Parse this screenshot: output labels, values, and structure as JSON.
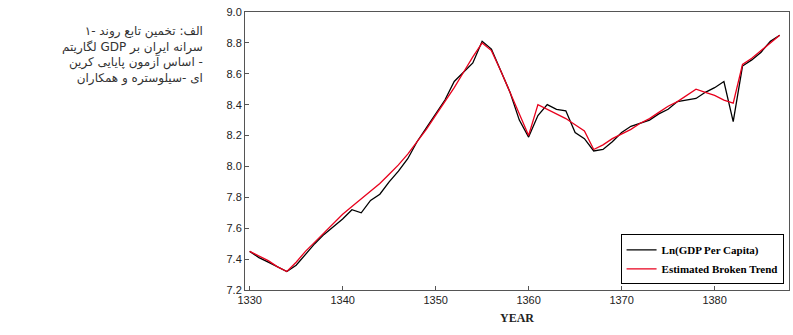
{
  "chart_data": {
    "type": "line",
    "x_label": "YEAR",
    "annotations": [
      {
        "text": "۱- الف: تخمین تابع روند\nلگاریتم GDP سرانه ایران بر\nاساس آزمون پایایی کرین -\nای -سیلوستره و همکاران"
      }
    ],
    "x": [
      1330,
      1331,
      1332,
      1333,
      1334,
      1335,
      1336,
      1337,
      1338,
      1339,
      1340,
      1341,
      1342,
      1343,
      1344,
      1345,
      1346,
      1347,
      1348,
      1349,
      1350,
      1351,
      1352,
      1353,
      1354,
      1355,
      1356,
      1357,
      1358,
      1359,
      1360,
      1361,
      1362,
      1363,
      1364,
      1365,
      1366,
      1367,
      1368,
      1369,
      1370,
      1371,
      1372,
      1373,
      1374,
      1375,
      1376,
      1377,
      1378,
      1379,
      1380,
      1381,
      1382,
      1383,
      1384,
      1385,
      1386,
      1387
    ],
    "series": [
      {
        "name": "Ln(GDP Per Capita)",
        "color": "#000000",
        "line_style": "solid",
        "values": [
          7.45,
          7.41,
          7.38,
          7.35,
          7.32,
          7.36,
          7.43,
          7.5,
          7.56,
          7.61,
          7.66,
          7.72,
          7.7,
          7.78,
          7.82,
          7.9,
          7.97,
          8.05,
          8.16,
          8.25,
          8.34,
          8.43,
          8.55,
          8.61,
          8.67,
          8.81,
          8.76,
          8.62,
          8.48,
          8.3,
          8.19,
          8.33,
          8.4,
          8.37,
          8.36,
          8.22,
          8.18,
          8.1,
          8.11,
          8.16,
          8.22,
          8.26,
          8.28,
          8.3,
          8.34,
          8.37,
          8.42,
          8.43,
          8.44,
          8.48,
          8.51,
          8.55,
          8.29,
          8.65,
          8.69,
          8.74,
          8.81,
          8.85
        ]
      },
      {
        "name": "Estimated Broken Trend",
        "color": "#e8001c",
        "line_style": "solid",
        "values": [
          7.45,
          7.42,
          7.39,
          7.35,
          7.32,
          7.38,
          7.45,
          7.51,
          7.57,
          7.63,
          7.69,
          7.74,
          7.79,
          7.84,
          7.89,
          7.95,
          8.01,
          8.08,
          8.16,
          8.24,
          8.33,
          8.42,
          8.51,
          8.61,
          8.71,
          8.8,
          8.75,
          8.62,
          8.48,
          8.34,
          8.2,
          8.4,
          8.37,
          8.34,
          8.31,
          8.27,
          8.23,
          8.11,
          8.14,
          8.18,
          8.21,
          8.24,
          8.28,
          8.31,
          8.35,
          8.39,
          8.42,
          8.46,
          8.5,
          8.48,
          8.46,
          8.43,
          8.41,
          8.66,
          8.7,
          8.75,
          8.8,
          8.85
        ]
      }
    ],
    "xlim": [
      1329.5,
      1388
    ],
    "xticks": [
      1330,
      1340,
      1350,
      1360,
      1370,
      1380
    ],
    "ylim": [
      7.2,
      9.0
    ],
    "yticks": [
      7.2,
      7.4,
      7.6,
      7.8,
      {
        "value": 8.0,
        "label": "8.0"
      },
      8.2,
      8.4,
      8.6,
      8.8,
      {
        "value": 9.0,
        "label": "9.0"
      }
    ],
    "grid": false,
    "legend": "bottom right"
  }
}
